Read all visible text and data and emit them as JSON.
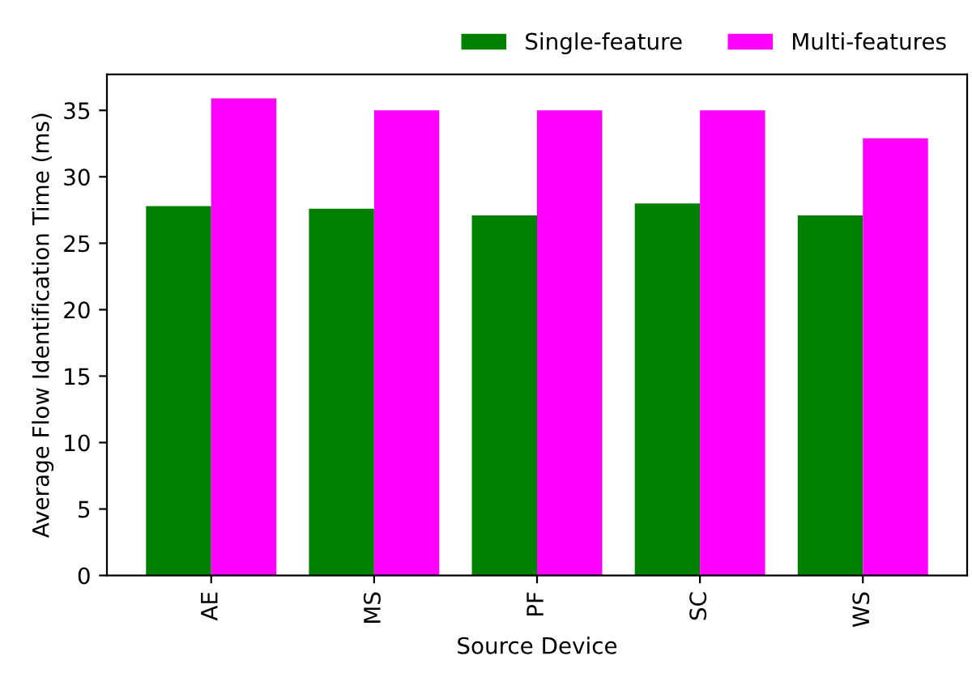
{
  "chart_data": {
    "type": "bar",
    "xlabel": "Source Device",
    "ylabel": "Average Flow Identification Time (ms)",
    "categories": [
      "AE",
      "MS",
      "PF",
      "SC",
      "WS"
    ],
    "series": [
      {
        "name": "Single-feature",
        "color": "#008000",
        "values": [
          27.8,
          27.6,
          27.1,
          28.0,
          27.1
        ]
      },
      {
        "name": "Multi-features",
        "color": "#ff00ff",
        "values": [
          35.9,
          35.0,
          35.0,
          35.0,
          32.9
        ]
      }
    ],
    "ylim": [
      0,
      37.7
    ],
    "yticks": [
      0,
      5,
      10,
      15,
      20,
      25,
      30,
      35
    ],
    "grid": false,
    "legend": "top"
  }
}
